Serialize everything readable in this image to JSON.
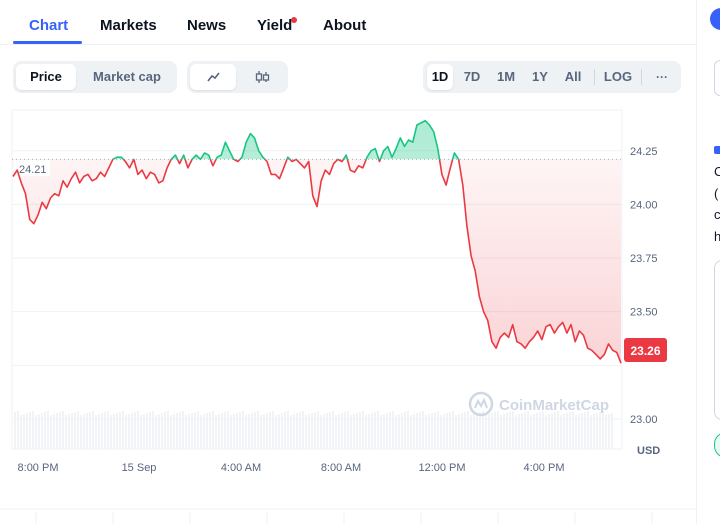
{
  "tabs": [
    {
      "label": "Chart"
    },
    {
      "label": "Markets"
    },
    {
      "label": "News"
    },
    {
      "label": "Yield"
    },
    {
      "label": "About"
    }
  ],
  "toggle": {
    "price": "Price",
    "market_cap": "Market cap"
  },
  "chart_type_icons": [
    "line-chart-icon",
    "candlestick-icon"
  ],
  "ranges": [
    "1D",
    "7D",
    "1M",
    "1Y",
    "All",
    "LOG"
  ],
  "more_label": "···",
  "watermark": "CoinMarketCap",
  "side": {
    "lines": [
      "C",
      "(",
      "c",
      "h"
    ]
  },
  "colors": {
    "up": "#16c784",
    "down": "#ea3943",
    "accent": "#3861fb"
  },
  "chart_data": {
    "type": "line",
    "x_ticks": [
      "8:00 PM",
      "15 Sep",
      "4:00 AM",
      "8:00 AM",
      "12:00 PM",
      "4:00 PM"
    ],
    "y_ticks": [
      "24.25",
      "24.00",
      "23.75",
      "23.50",
      "23.00"
    ],
    "y_unit": "USD",
    "ylim": [
      22.86,
      24.44
    ],
    "baseline": 24.21,
    "baseline_label": "24.21",
    "current_price_label": "23.26",
    "values": [
      24.13,
      24.16,
      24.1,
      24.05,
      23.93,
      23.91,
      23.95,
      24.01,
      23.98,
      24.03,
      24.05,
      24.04,
      24.11,
      24.08,
      24.12,
      24.15,
      24.1,
      24.13,
      24.14,
      24.11,
      24.12,
      24.15,
      24.13,
      24.17,
      24.21,
      24.22,
      24.22,
      24.2,
      24.17,
      24.21,
      24.14,
      24.16,
      24.12,
      24.15,
      24.14,
      24.1,
      24.11,
      24.17,
      24.21,
      24.23,
      24.19,
      24.23,
      24.17,
      24.21,
      24.23,
      24.21,
      24.24,
      24.23,
      24.18,
      24.22,
      24.23,
      24.29,
      24.25,
      24.21,
      24.2,
      24.22,
      24.29,
      24.33,
      24.31,
      24.25,
      24.22,
      24.2,
      24.14,
      24.14,
      24.12,
      24.17,
      24.22,
      24.2,
      24.21,
      24.19,
      24.17,
      24.2,
      24.04,
      23.99,
      24.11,
      24.16,
      24.14,
      24.19,
      24.21,
      24.2,
      24.23,
      24.16,
      24.15,
      24.18,
      24.17,
      24.22,
      24.25,
      24.26,
      24.2,
      24.25,
      24.27,
      24.22,
      24.26,
      24.31,
      24.27,
      24.3,
      24.29,
      24.37,
      24.38,
      24.39,
      24.37,
      24.34,
      24.26,
      24.14,
      24.09,
      24.17,
      24.24,
      24.21,
      24.09,
      23.9,
      23.76,
      23.69,
      23.57,
      23.5,
      23.46,
      23.36,
      23.33,
      23.38,
      23.4,
      23.38,
      23.44,
      23.36,
      23.35,
      23.33,
      23.36,
      23.38,
      23.41,
      23.37,
      23.43,
      23.44,
      23.4,
      23.43,
      23.45,
      23.4,
      23.44,
      23.36,
      23.41,
      23.39,
      23.33,
      23.32,
      23.3,
      23.28,
      23.3,
      23.35,
      23.32,
      23.31,
      23.26
    ]
  }
}
